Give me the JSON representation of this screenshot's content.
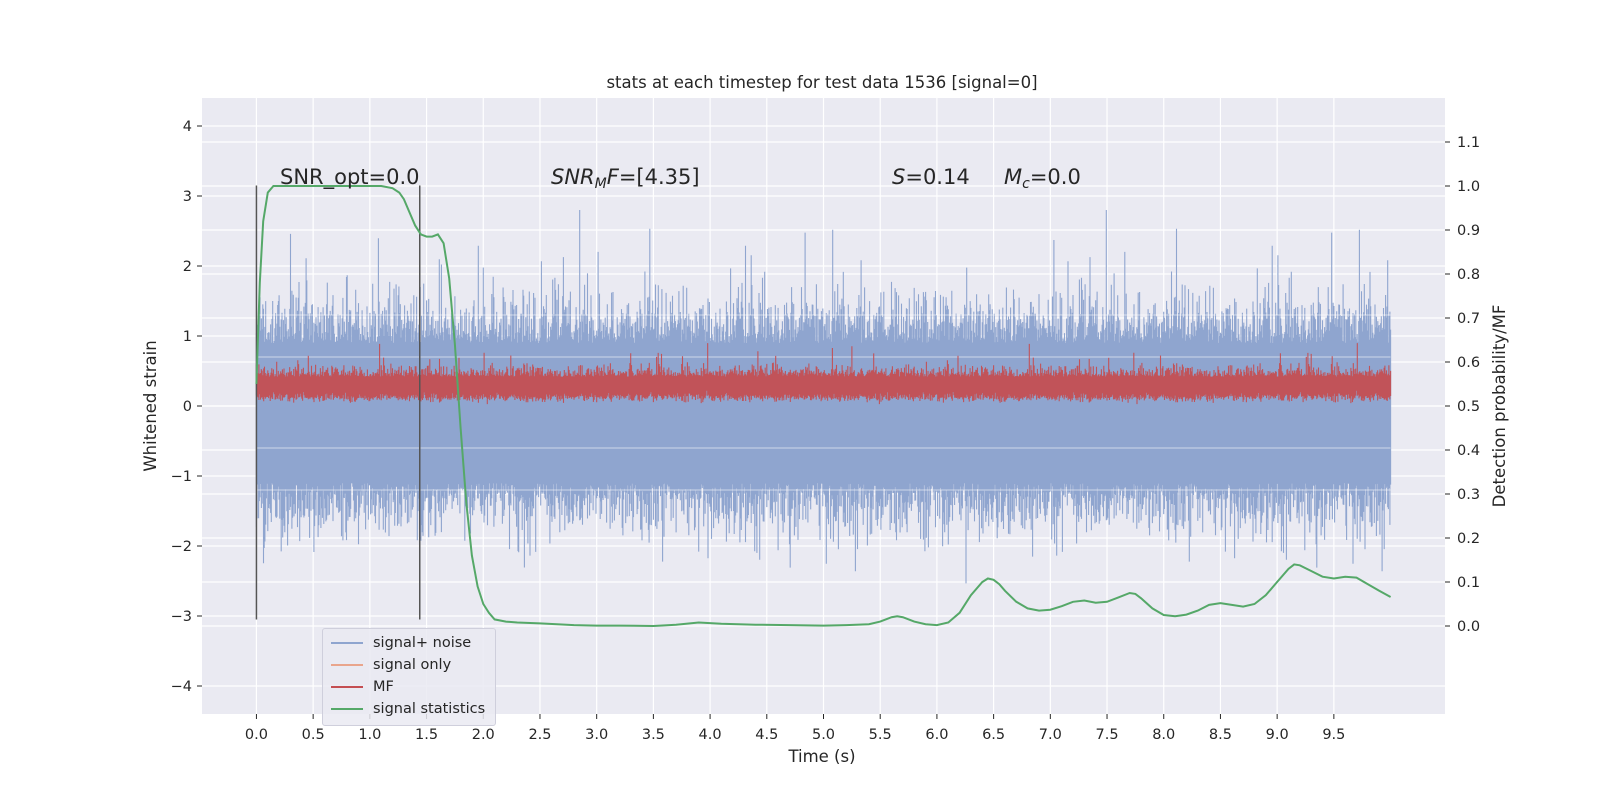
{
  "chart_data": {
    "type": "line",
    "title": "stats at each timestep for test data 1536 [signal=0]",
    "xlabel": "Time (s)",
    "ylabel": "Whitened strain",
    "ylabel_right": "Detection probability/MF",
    "xlim": [
      -0.48,
      10.48
    ],
    "ylim": [
      -4.4,
      4.4
    ],
    "ylim_right": [
      -0.2,
      1.2
    ],
    "x_ticks": [
      "0.0",
      "0.5",
      "1.0",
      "1.5",
      "2.0",
      "2.5",
      "3.0",
      "3.5",
      "4.0",
      "4.5",
      "5.0",
      "5.5",
      "6.0",
      "6.5",
      "7.0",
      "7.5",
      "8.0",
      "8.5",
      "9.0",
      "9.5"
    ],
    "y_ticks": [
      "4",
      "3",
      "2",
      "1",
      "0",
      "−1",
      "−2",
      "−3",
      "−4"
    ],
    "y_right_ticks": [
      "1.1",
      "1.0",
      "0.9",
      "0.8",
      "0.7",
      "0.6",
      "0.5",
      "0.4",
      "0.3",
      "0.2",
      "0.1",
      "0.0"
    ],
    "annotations": {
      "snr_opt": "SNR_opt=0.0",
      "snr_mf_italic": "SNR",
      "snr_mf_sub": "M",
      "snr_mf_tail": "F",
      "snr_mf_value": "=[4.35]",
      "s_italic": "S",
      "s_value": "=0.14",
      "mc_italic": "M",
      "mc_sub": "c",
      "mc_value": "=0.0"
    },
    "markers_x": [
      0.0,
      1.44
    ],
    "legend": [
      "signal+ noise",
      "signal only",
      "MF",
      "signal statistics"
    ],
    "legend_position": "lower-left",
    "grid": true,
    "colors": {
      "background": "#eaeaf2",
      "noise": "#8fa5cf",
      "signal": "#e9a58c",
      "mf": "#c44e52",
      "stats": "#55a868",
      "marker": "#555555"
    },
    "series": [
      {
        "name": "signal statistics",
        "axis": "right",
        "x": [
          0.0,
          0.03,
          0.06,
          0.1,
          0.15,
          0.2,
          0.3,
          0.4,
          0.6,
          0.8,
          1.0,
          1.1,
          1.2,
          1.26,
          1.3,
          1.35,
          1.4,
          1.45,
          1.5,
          1.55,
          1.6,
          1.65,
          1.7,
          1.75,
          1.8,
          1.85,
          1.9,
          1.95,
          2.0,
          2.05,
          2.1,
          2.2,
          2.3,
          2.5,
          2.8,
          3.0,
          3.2,
          3.5,
          3.7,
          3.9,
          4.1,
          4.4,
          4.7,
          5.0,
          5.2,
          5.4,
          5.5,
          5.6,
          5.65,
          5.7,
          5.8,
          5.9,
          6.0,
          6.1,
          6.2,
          6.3,
          6.4,
          6.45,
          6.5,
          6.55,
          6.6,
          6.7,
          6.8,
          6.9,
          7.0,
          7.1,
          7.2,
          7.3,
          7.4,
          7.5,
          7.6,
          7.7,
          7.75,
          7.8,
          7.9,
          8.0,
          8.1,
          8.2,
          8.3,
          8.4,
          8.5,
          8.6,
          8.7,
          8.8,
          8.9,
          9.0,
          9.1,
          9.15,
          9.2,
          9.3,
          9.4,
          9.5,
          9.6,
          9.7,
          9.8,
          9.9,
          10.0
        ],
        "values": [
          0.55,
          0.78,
          0.92,
          0.985,
          1.0,
          1.0,
          1.0,
          1.0,
          1.0,
          1.0,
          1.0,
          1.0,
          0.995,
          0.985,
          0.97,
          0.94,
          0.91,
          0.89,
          0.885,
          0.885,
          0.89,
          0.87,
          0.79,
          0.64,
          0.45,
          0.28,
          0.16,
          0.09,
          0.05,
          0.03,
          0.015,
          0.01,
          0.008,
          0.006,
          0.002,
          0.001,
          0.001,
          0.0,
          0.003,
          0.008,
          0.005,
          0.003,
          0.002,
          0.001,
          0.002,
          0.004,
          0.01,
          0.02,
          0.022,
          0.02,
          0.01,
          0.004,
          0.002,
          0.008,
          0.03,
          0.07,
          0.1,
          0.108,
          0.105,
          0.095,
          0.08,
          0.055,
          0.04,
          0.035,
          0.037,
          0.045,
          0.055,
          0.058,
          0.053,
          0.055,
          0.065,
          0.075,
          0.073,
          0.063,
          0.04,
          0.025,
          0.022,
          0.026,
          0.035,
          0.048,
          0.052,
          0.048,
          0.044,
          0.05,
          0.07,
          0.1,
          0.13,
          0.14,
          0.138,
          0.125,
          0.112,
          0.108,
          0.112,
          0.11,
          0.095,
          0.08,
          0.066
        ]
      }
    ]
  }
}
